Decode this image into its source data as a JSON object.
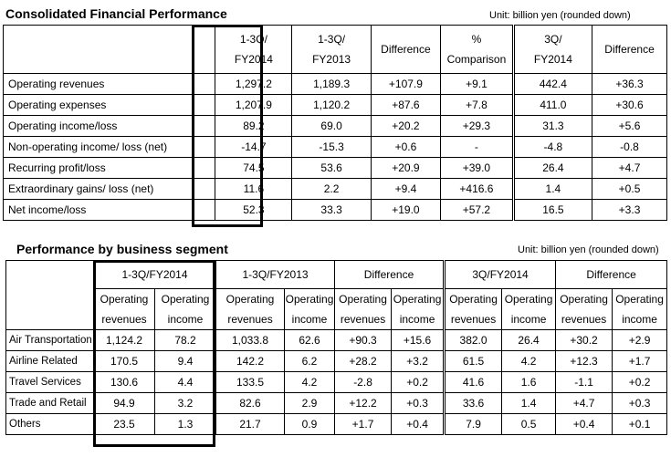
{
  "consolidated": {
    "title": "Consolidated Financial Performance",
    "unit": "Unit: billion yen (rounded down)",
    "headers": {
      "c1": [
        "1-3Q/",
        "FY2014"
      ],
      "c2": [
        "1-3Q/",
        "FY2013"
      ],
      "c3": [
        "Difference"
      ],
      "c4": [
        "%",
        "Comparison"
      ],
      "c5": [
        "3Q/",
        "FY2014"
      ],
      "c6": [
        "Difference"
      ]
    },
    "rows": [
      {
        "label": "Operating revenues",
        "v": [
          "1,297.2",
          "1,189.3",
          "+107.9",
          "+9.1",
          "442.4",
          "+36.3"
        ]
      },
      {
        "label": "Operating expenses",
        "v": [
          "1,207.9",
          "1,120.2",
          "+87.6",
          "+7.8",
          "411.0",
          "+30.6"
        ]
      },
      {
        "label": "Operating income/loss",
        "v": [
          "89.2",
          "69.0",
          "+20.2",
          "+29.3",
          "31.3",
          "+5.6"
        ]
      },
      {
        "label": "Non-operating income/ loss  (net)",
        "v": [
          "-14.7",
          "-15.3",
          "+0.6",
          "-",
          "-4.8",
          "-0.8"
        ]
      },
      {
        "label": "Recurring profit/loss",
        "v": [
          "74.5",
          "53.6",
          "+20.9",
          "+39.0",
          "26.4",
          "+4.7"
        ]
      },
      {
        "label": "Extraordinary gains/ loss (net)",
        "v": [
          "11.6",
          "2.2",
          "+9.4",
          "+416.6",
          "1.4",
          "+0.5"
        ]
      },
      {
        "label": "Net income/loss",
        "v": [
          "52.3",
          "33.3",
          "+19.0",
          "+57.2",
          "16.5",
          "+3.3"
        ]
      }
    ]
  },
  "segment": {
    "title": "Performance by business segment",
    "unit": "Unit: billion yen (rounded down)",
    "groups": [
      "1-3Q/FY2014",
      "1-3Q/FY2013",
      "Difference",
      "3Q/FY2014",
      "Difference"
    ],
    "sub_revenues": [
      "Operating",
      "revenues"
    ],
    "sub_income": [
      "Operating",
      "income"
    ],
    "rows": [
      {
        "label": "Air Transportation",
        "v": [
          "1,124.2",
          "78.2",
          "1,033.8",
          "62.6",
          "+90.3",
          "+15.6",
          "382.0",
          "26.4",
          "+30.2",
          "+2.9"
        ]
      },
      {
        "label": "Airline Related",
        "v": [
          "170.5",
          "9.4",
          "142.2",
          "6.2",
          "+28.2",
          "+3.2",
          "61.5",
          "4.2",
          "+12.3",
          "+1.7"
        ]
      },
      {
        "label": "Travel Services",
        "v": [
          "130.6",
          "4.4",
          "133.5",
          "4.2",
          "-2.8",
          "+0.2",
          "41.6",
          "1.6",
          "-1.1",
          "+0.2"
        ]
      },
      {
        "label": "Trade and Retail",
        "v": [
          "94.9",
          "3.2",
          "82.6",
          "2.9",
          "+12.2",
          "+0.3",
          "33.6",
          "1.4",
          "+4.7",
          "+0.3"
        ]
      },
      {
        "label": "Others",
        "v": [
          "23.5",
          "1.3",
          "21.7",
          "0.9",
          "+1.7",
          "+0.4",
          "7.9",
          "0.5",
          "+0.4",
          "+0.1"
        ]
      }
    ]
  }
}
